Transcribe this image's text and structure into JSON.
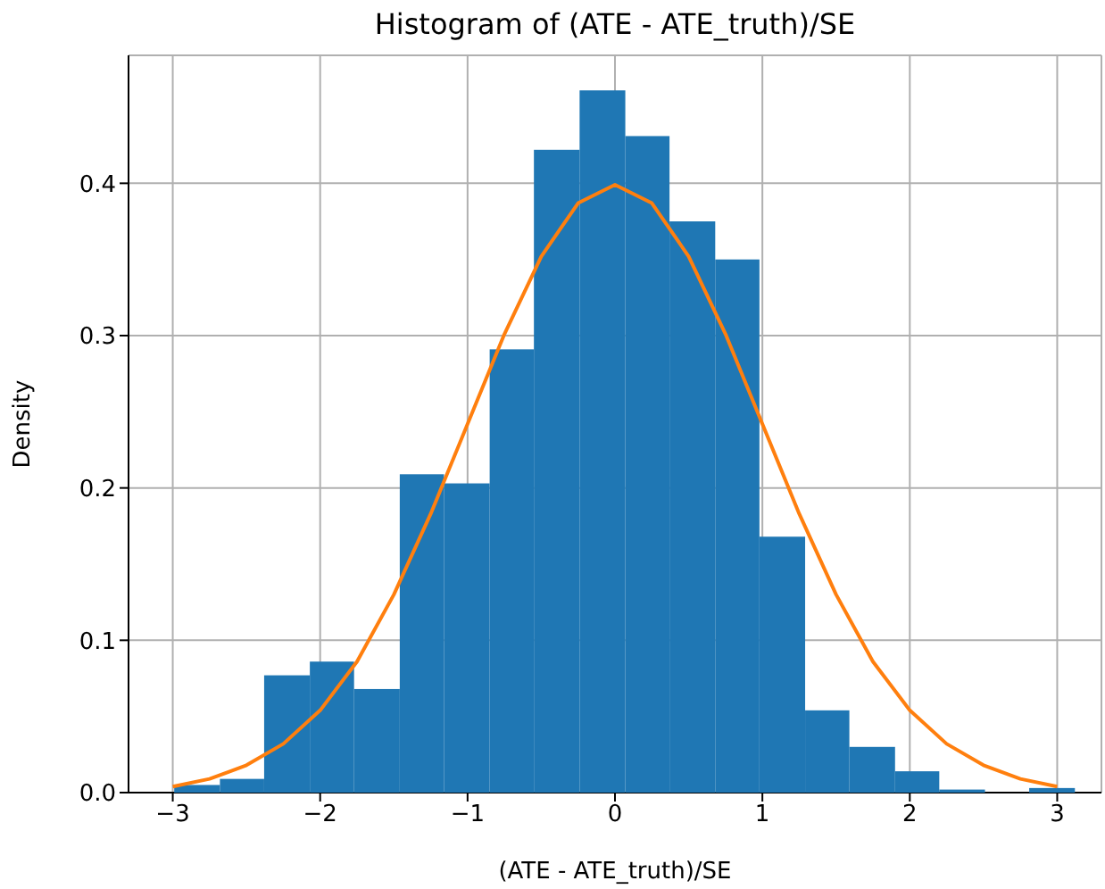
{
  "chart_data": {
    "type": "histogram",
    "title": "Histogram of (ATE - ATE_truth)/SE",
    "xlabel": "(ATE - ATE_truth)/SE",
    "ylabel": "Density",
    "bins": [
      -2.99,
      -2.68,
      -2.38,
      -2.07,
      -1.77,
      -1.46,
      -1.16,
      -0.85,
      -0.55,
      -0.24,
      0.07,
      0.37,
      0.68,
      0.98,
      1.29,
      1.59,
      1.9,
      2.2,
      2.51,
      2.81,
      3.12
    ],
    "values": [
      0.005,
      0.009,
      0.077,
      0.086,
      0.068,
      0.209,
      0.203,
      0.291,
      0.422,
      0.461,
      0.431,
      0.375,
      0.35,
      0.168,
      0.054,
      0.03,
      0.014,
      0.002,
      0,
      0.003
    ],
    "color": "#1f77b4",
    "series": [
      {
        "type": "line",
        "color": "#ff7f0e",
        "x": [
          -3,
          -2.75,
          -2.5,
          -2.25,
          -2,
          -1.75,
          -1.5,
          -1.25,
          -1,
          -0.75,
          -0.5,
          -0.25,
          0,
          0.25,
          0.5,
          0.75,
          1,
          1.25,
          1.5,
          1.75,
          2,
          2.25,
          2.5,
          2.75,
          3
        ],
        "values": [
          0.004,
          0.009,
          0.018,
          0.032,
          0.054,
          0.086,
          0.13,
          0.183,
          0.242,
          0.301,
          0.352,
          0.387,
          0.399,
          0.387,
          0.352,
          0.301,
          0.242,
          0.183,
          0.13,
          0.086,
          0.054,
          0.032,
          0.018,
          0.009,
          0.004
        ]
      }
    ],
    "xlim": [
      -3.3,
      3.3
    ],
    "xticks": [
      -3,
      -2,
      -1,
      0,
      1,
      2,
      3
    ],
    "ylim": [
      0,
      0.484
    ],
    "yticks": [
      {
        "value": 0,
        "label": "0.0"
      },
      0.1,
      0.2,
      0.3,
      0.4
    ],
    "grid": true,
    "marker": "none",
    "line_style": "solid"
  }
}
